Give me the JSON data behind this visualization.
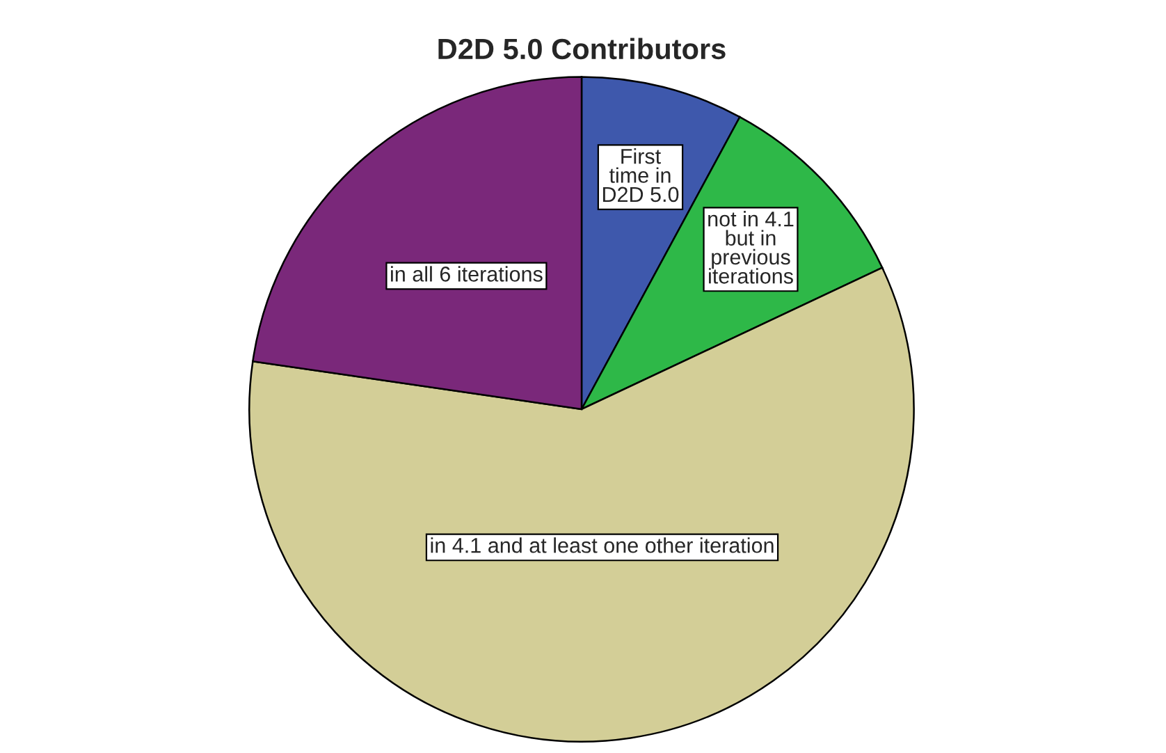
{
  "chart_data": {
    "type": "pie",
    "title": "D2D 5.0 Contributors",
    "categories": [
      "First\ntime in\nD2D 5.0",
      "not in 4.1\nbut in\nprevious\niterations",
      "in 4.1 and at least one other iteration",
      "in all 6 iterations"
    ],
    "values": [
      7.9,
      10.1,
      59.3,
      22.7
    ],
    "colors": [
      "#3e58ac",
      "#2eb848",
      "#d3ce97",
      "#7a287a"
    ]
  }
}
